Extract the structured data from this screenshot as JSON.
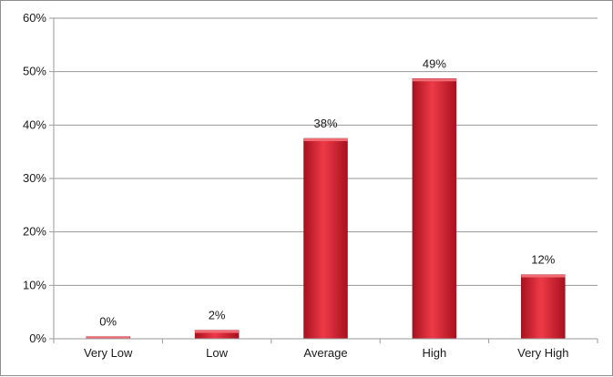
{
  "chart_data": {
    "type": "bar",
    "categories": [
      "Very Low",
      "Low",
      "Average",
      "High",
      "Very High"
    ],
    "values": [
      0.4,
      1.6,
      37.5,
      48.7,
      12.0
    ],
    "data_labels": [
      "0%",
      "2%",
      "38%",
      "49%",
      "12%"
    ],
    "title": "",
    "xlabel": "",
    "ylabel": "",
    "ylim": [
      0,
      60
    ],
    "y_ticks": [
      "0%",
      "10%",
      "20%",
      "30%",
      "40%",
      "50%",
      "60%"
    ],
    "grid": true,
    "legend": "none",
    "colors": {
      "bar_light": "#ee3a48",
      "bar_dark": "#a8111e",
      "grid": "#9a9a9a"
    }
  }
}
